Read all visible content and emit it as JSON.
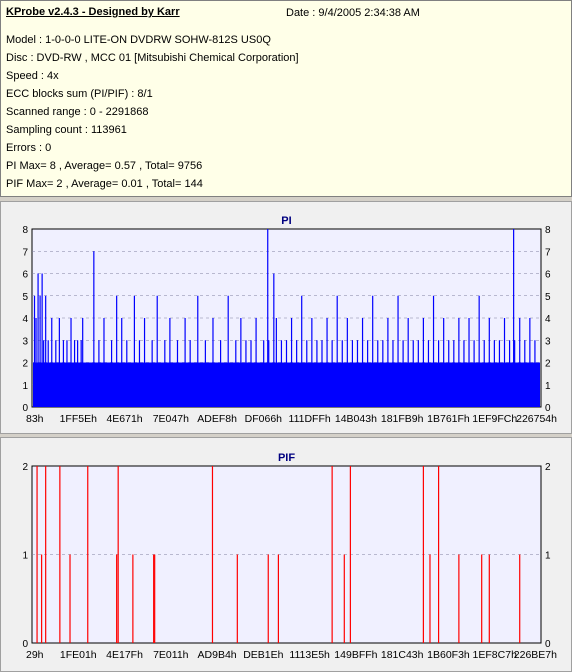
{
  "header": {
    "title": "KProbe v2.4.3 - Designed by Karr",
    "date_label": "Date : 9/4/2005 2:34:38 AM"
  },
  "info_lines": [
    "Model : 1-0-0-0 LITE-ON DVDRW SOHW-812S  US0Q",
    "Disc : DVD-RW , MCC 01 [Mitsubishi Chemical Corporation]",
    "Speed : 4x",
    "ECC blocks sum (PI/PIF) : 8/1",
    "Scanned range : 0 - 2291868",
    "Sampling count : 113961",
    "Errors : 0",
    "PI Max= 8 , Average= 0.57 , Total= 9756",
    "PIF Max= 2 , Average= 0.01 , Total= 144"
  ],
  "colors": {
    "pi": "#0000ff",
    "pif": "#ff0000",
    "plot_bg": "#f0f0ff",
    "grid": "#8080a0"
  },
  "chart_data": [
    {
      "type": "bar",
      "title": "PI",
      "ylim": [
        0,
        8
      ],
      "yticks": [
        0,
        1,
        2,
        3,
        4,
        5,
        6,
        7,
        8
      ],
      "xticks": [
        "83h",
        "1FF5Eh",
        "4E671h",
        "7E047h",
        "ADEF8h",
        "DF066h",
        "111DFFh",
        "14B043h",
        "181FB9h",
        "1B761Fh",
        "1EF9FCh",
        "226754h"
      ],
      "baseline_level": 2,
      "spikes": [
        [
          0.003,
          5
        ],
        [
          0.006,
          4
        ],
        [
          0.01,
          6
        ],
        [
          0.014,
          5
        ],
        [
          0.018,
          6
        ],
        [
          0.021,
          3
        ],
        [
          0.025,
          5
        ],
        [
          0.03,
          3
        ],
        [
          0.037,
          4
        ],
        [
          0.045,
          3
        ],
        [
          0.052,
          4
        ],
        [
          0.06,
          3
        ],
        [
          0.067,
          3
        ],
        [
          0.075,
          4
        ],
        [
          0.082,
          3
        ],
        [
          0.088,
          3
        ],
        [
          0.095,
          3
        ],
        [
          0.098,
          4
        ],
        [
          0.12,
          7
        ],
        [
          0.13,
          3
        ],
        [
          0.14,
          4
        ],
        [
          0.155,
          3
        ],
        [
          0.165,
          5
        ],
        [
          0.175,
          4
        ],
        [
          0.185,
          3
        ],
        [
          0.2,
          5
        ],
        [
          0.21,
          3
        ],
        [
          0.22,
          4
        ],
        [
          0.235,
          3
        ],
        [
          0.245,
          5
        ],
        [
          0.26,
          3
        ],
        [
          0.27,
          4
        ],
        [
          0.285,
          3
        ],
        [
          0.3,
          4
        ],
        [
          0.31,
          3
        ],
        [
          0.325,
          5
        ],
        [
          0.34,
          3
        ],
        [
          0.355,
          4
        ],
        [
          0.37,
          3
        ],
        [
          0.385,
          5
        ],
        [
          0.4,
          3
        ],
        [
          0.41,
          4
        ],
        [
          0.42,
          3
        ],
        [
          0.43,
          3
        ],
        [
          0.44,
          4
        ],
        [
          0.455,
          3
        ],
        [
          0.465,
          3
        ],
        [
          0.475,
          6
        ],
        [
          0.48,
          4
        ],
        [
          0.49,
          3
        ],
        [
          0.5,
          3
        ],
        [
          0.51,
          4
        ],
        [
          0.52,
          3
        ],
        [
          0.53,
          5
        ],
        [
          0.54,
          3
        ],
        [
          0.55,
          4
        ],
        [
          0.56,
          3
        ],
        [
          0.57,
          3
        ],
        [
          0.58,
          4
        ],
        [
          0.59,
          3
        ],
        [
          0.6,
          5
        ],
        [
          0.61,
          3
        ],
        [
          0.62,
          4
        ],
        [
          0.63,
          3
        ],
        [
          0.64,
          3
        ],
        [
          0.65,
          4
        ],
        [
          0.66,
          3
        ],
        [
          0.67,
          5
        ],
        [
          0.68,
          3
        ],
        [
          0.69,
          3
        ],
        [
          0.7,
          4
        ],
        [
          0.71,
          3
        ],
        [
          0.72,
          5
        ],
        [
          0.73,
          3
        ],
        [
          0.74,
          4
        ],
        [
          0.75,
          3
        ],
        [
          0.76,
          3
        ],
        [
          0.77,
          4
        ],
        [
          0.78,
          3
        ],
        [
          0.79,
          5
        ],
        [
          0.8,
          3
        ],
        [
          0.81,
          4
        ],
        [
          0.82,
          3
        ],
        [
          0.83,
          3
        ],
        [
          0.84,
          4
        ],
        [
          0.85,
          3
        ],
        [
          0.86,
          4
        ],
        [
          0.87,
          3
        ],
        [
          0.88,
          5
        ],
        [
          0.89,
          3
        ],
        [
          0.9,
          4
        ],
        [
          0.91,
          3
        ],
        [
          0.92,
          3
        ],
        [
          0.93,
          4
        ],
        [
          0.94,
          3
        ],
        [
          0.95,
          3
        ],
        [
          0.96,
          4
        ],
        [
          0.97,
          3
        ],
        [
          0.98,
          4
        ],
        [
          0.99,
          3
        ],
        [
          0.463,
          8
        ],
        [
          0.948,
          8
        ]
      ]
    },
    {
      "type": "bar",
      "title": "PIF",
      "ylim": [
        0,
        2
      ],
      "yticks": [
        0,
        1,
        2
      ],
      "xticks": [
        "29h",
        "1FE01h",
        "4E17Fh",
        "7E011h",
        "AD9B4h",
        "DEB1Eh",
        "1113E5h",
        "149BFFh",
        "181C43h",
        "1B60F3h",
        "1EF8C7h",
        "226BE7h"
      ],
      "spikes": [
        [
          0.008,
          2
        ],
        [
          0.017,
          1
        ],
        [
          0.025,
          2
        ],
        [
          0.053,
          2
        ],
        [
          0.073,
          1
        ],
        [
          0.108,
          2
        ],
        [
          0.165,
          1
        ],
        [
          0.168,
          2
        ],
        [
          0.197,
          1
        ],
        [
          0.238,
          1
        ],
        [
          0.24,
          1
        ],
        [
          0.354,
          2
        ],
        [
          0.403,
          1
        ],
        [
          0.464,
          1
        ],
        [
          0.484,
          1
        ],
        [
          0.59,
          2
        ],
        [
          0.614,
          1
        ],
        [
          0.626,
          2
        ],
        [
          0.77,
          2
        ],
        [
          0.783,
          1
        ],
        [
          0.8,
          2
        ],
        [
          0.84,
          1
        ],
        [
          0.885,
          1
        ],
        [
          0.9,
          1
        ],
        [
          0.96,
          1
        ]
      ]
    }
  ]
}
